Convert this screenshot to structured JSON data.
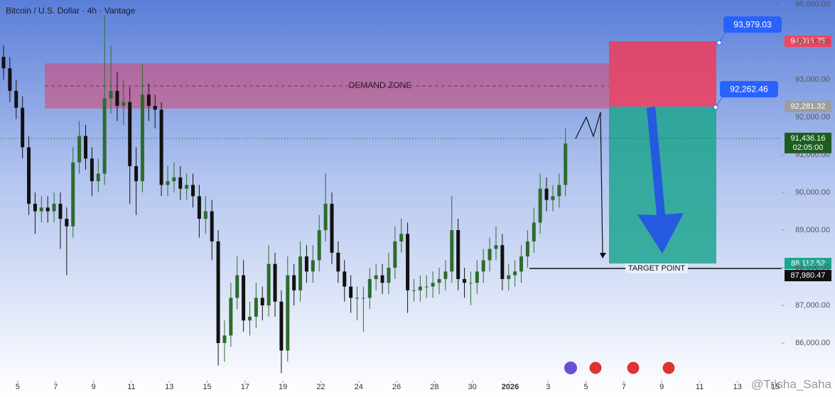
{
  "chart_data": {
    "type": "candlestick",
    "title": "Bitcoin / U.S. Dollar · 4h · Vantage",
    "x": [
      -18,
      -10,
      -2,
      6,
      14,
      22,
      30,
      38,
      46,
      54,
      62,
      70,
      78,
      86,
      94,
      102,
      110,
      118,
      126,
      134,
      142,
      150,
      158,
      166,
      174,
      182,
      190,
      198,
      206,
      214,
      222,
      230,
      238,
      246,
      254,
      262,
      270,
      278,
      286,
      294,
      302,
      310,
      318,
      326,
      334,
      342,
      350,
      358,
      366,
      374,
      382,
      390,
      398,
      406,
      414,
      422,
      430,
      438,
      446,
      454,
      462,
      470,
      478,
      486,
      494,
      502,
      510,
      518,
      526,
      534,
      542,
      550,
      558,
      566,
      574,
      582,
      590,
      598,
      606,
      614,
      622,
      630,
      638,
      646,
      654,
      662,
      670,
      678,
      686,
      694
    ],
    "open": [
      93600,
      93300,
      92700,
      92250,
      91200,
      89700,
      89500,
      89600,
      89500,
      89700,
      89300,
      89100,
      90800,
      91500,
      90900,
      90300,
      90500,
      92500,
      92700,
      92300,
      92400,
      90700,
      90300,
      92600,
      92300,
      92200,
      90200,
      90300,
      90400,
      90100,
      90200,
      89900,
      89300,
      89500,
      88700,
      86000,
      86200,
      87200,
      87800,
      86600,
      86700,
      87200,
      87000,
      88100,
      87100,
      85800,
      87800,
      87400,
      88300,
      87900,
      88200,
      89000,
      89700,
      88400,
      87900,
      87500,
      87200,
      87200,
      87200,
      87700,
      87800,
      87600,
      88000,
      88700,
      88900,
      87400,
      87400,
      87500,
      87500,
      87600,
      87700,
      87900,
      89000,
      87700,
      87600,
      87600,
      87900,
      88200,
      88500,
      88600,
      87700,
      87800,
      87900,
      88300,
      88700,
      89200,
      90100,
      89800,
      89900,
      90200
    ],
    "high": [
      93900,
      93600,
      93000,
      92550,
      91500,
      90000,
      89900,
      89900,
      90000,
      90000,
      89600,
      91200,
      91900,
      91800,
      91200,
      90900,
      94700,
      93900,
      93200,
      93000,
      92800,
      91200,
      93400,
      92900,
      92600,
      92400,
      90700,
      90800,
      90700,
      90500,
      90500,
      90200,
      89900,
      89800,
      89000,
      86600,
      87600,
      88300,
      88200,
      87100,
      87600,
      87500,
      88600,
      88400,
      87400,
      88300,
      88100,
      88700,
      88600,
      88600,
      89400,
      90500,
      90000,
      88700,
      88200,
      87800,
      87500,
      87500,
      88000,
      88100,
      88100,
      88400,
      89100,
      89300,
      89200,
      87700,
      87800,
      87800,
      87900,
      88000,
      88200,
      89900,
      89300,
      88000,
      87900,
      88200,
      88500,
      88800,
      89100,
      88900,
      88100,
      88200,
      88600,
      89000,
      89600,
      90500,
      90400,
      90200,
      90500,
      91700
    ],
    "low": [
      93000,
      92400,
      91950,
      90900,
      89400,
      88900,
      89200,
      89200,
      89200,
      88500,
      87800,
      88800,
      90500,
      90600,
      89900,
      90000,
      90200,
      92100,
      91900,
      91800,
      89700,
      89400,
      90000,
      91900,
      91700,
      89900,
      89900,
      90000,
      89800,
      89800,
      89600,
      88800,
      88900,
      88200,
      85400,
      85500,
      85900,
      86900,
      86300,
      86200,
      86400,
      86600,
      86700,
      86700,
      85200,
      85500,
      87000,
      87100,
      87600,
      87600,
      87900,
      88700,
      88100,
      87600,
      87100,
      86800,
      86600,
      86300,
      86900,
      87400,
      87300,
      87300,
      87700,
      88400,
      86800,
      87100,
      87100,
      87200,
      87200,
      87300,
      87400,
      87600,
      87400,
      87200,
      87000,
      87300,
      87600,
      87900,
      88200,
      87400,
      87400,
      87500,
      87600,
      88000,
      88400,
      88900,
      89500,
      89500,
      89600,
      89900
    ],
    "close": [
      93300,
      92700,
      92250,
      91200,
      89700,
      89500,
      89600,
      89500,
      89700,
      89300,
      89100,
      90800,
      91500,
      90900,
      90300,
      90500,
      92500,
      92700,
      92300,
      92400,
      90700,
      90300,
      92600,
      92300,
      92200,
      90200,
      90300,
      90400,
      90100,
      90200,
      89900,
      89300,
      89500,
      88700,
      86000,
      86200,
      87200,
      87800,
      86600,
      86700,
      87200,
      87000,
      88100,
      87100,
      85800,
      87800,
      87400,
      88300,
      87900,
      88200,
      89000,
      89700,
      88400,
      87900,
      87500,
      87200,
      87200,
      87200,
      87700,
      87800,
      87600,
      88000,
      88700,
      88900,
      87400,
      87400,
      87500,
      87500,
      87600,
      87700,
      87900,
      89000,
      87700,
      87600,
      87600,
      87900,
      88200,
      88500,
      88600,
      87700,
      87800,
      87900,
      88300,
      88700,
      89200,
      90100,
      89800,
      89900,
      90200,
      91300
    ],
    "up_color": "#2e6b2e",
    "down_color": "#111111",
    "xlim": [
      -22.5,
      968
    ],
    "xticks": [
      {
        "value": 0,
        "label": "5"
      },
      {
        "value": 48,
        "label": "7"
      },
      {
        "value": 96,
        "label": "9"
      },
      {
        "value": 144,
        "label": "11"
      },
      {
        "value": 192,
        "label": "13"
      },
      {
        "value": 240,
        "label": "15"
      },
      {
        "value": 288,
        "label": "17"
      },
      {
        "value": 336,
        "label": "19"
      },
      {
        "value": 384,
        "label": "22"
      },
      {
        "value": 432,
        "label": "24"
      },
      {
        "value": 480,
        "label": "26"
      },
      {
        "value": 528,
        "label": "28"
      },
      {
        "value": 576,
        "label": "30"
      },
      {
        "value": 624,
        "label": "2026"
      },
      {
        "value": 672,
        "label": "3"
      },
      {
        "value": 720,
        "label": "5"
      },
      {
        "value": 768,
        "label": "7"
      },
      {
        "value": 816,
        "label": "9"
      },
      {
        "value": 864,
        "label": "11"
      },
      {
        "value": 912,
        "label": "13"
      },
      {
        "value": 960,
        "label": "15"
      }
    ],
    "ylim": [
      85000,
      95000
    ],
    "yticks": [
      {
        "value": 95000,
        "label": "95,000.00"
      },
      {
        "value": 94000,
        "label": "94,000.00"
      },
      {
        "value": 93000,
        "label": "93,000.00"
      },
      {
        "value": 92000,
        "label": "92,000.00"
      },
      {
        "value": 91000,
        "label": "91,000.00"
      },
      {
        "value": 90000,
        "label": "90,000.00"
      },
      {
        "value": 89000,
        "label": "89,000.00"
      },
      {
        "value": 88000,
        "label": "88,000.00"
      },
      {
        "value": 87000,
        "label": "87,000.00"
      },
      {
        "value": 86000,
        "label": "86,000.00"
      }
    ],
    "demand_zone": {
      "label": "DEMAND ZONE",
      "low": 92230,
      "high": 93430
    },
    "position": {
      "stop": {
        "value": 94016.75,
        "label": "94,016.75"
      },
      "entry": {
        "value": 92281.32,
        "label": "92,281.32"
      },
      "target": {
        "value": 88112.52,
        "label": "88,112.52"
      }
    },
    "target_line": {
      "label": "TARGET POINT",
      "value": 87980.47,
      "value_label": "87,980.47"
    },
    "last_price": {
      "value": 91436.16,
      "label": "91,436.16",
      "countdown": "02:05:00"
    },
    "callouts": [
      {
        "value": 93979.03,
        "label": "93,979.03"
      },
      {
        "value": 92262.46,
        "label": "92,262.46"
      }
    ],
    "watermark": "@Trisha_Saha"
  }
}
